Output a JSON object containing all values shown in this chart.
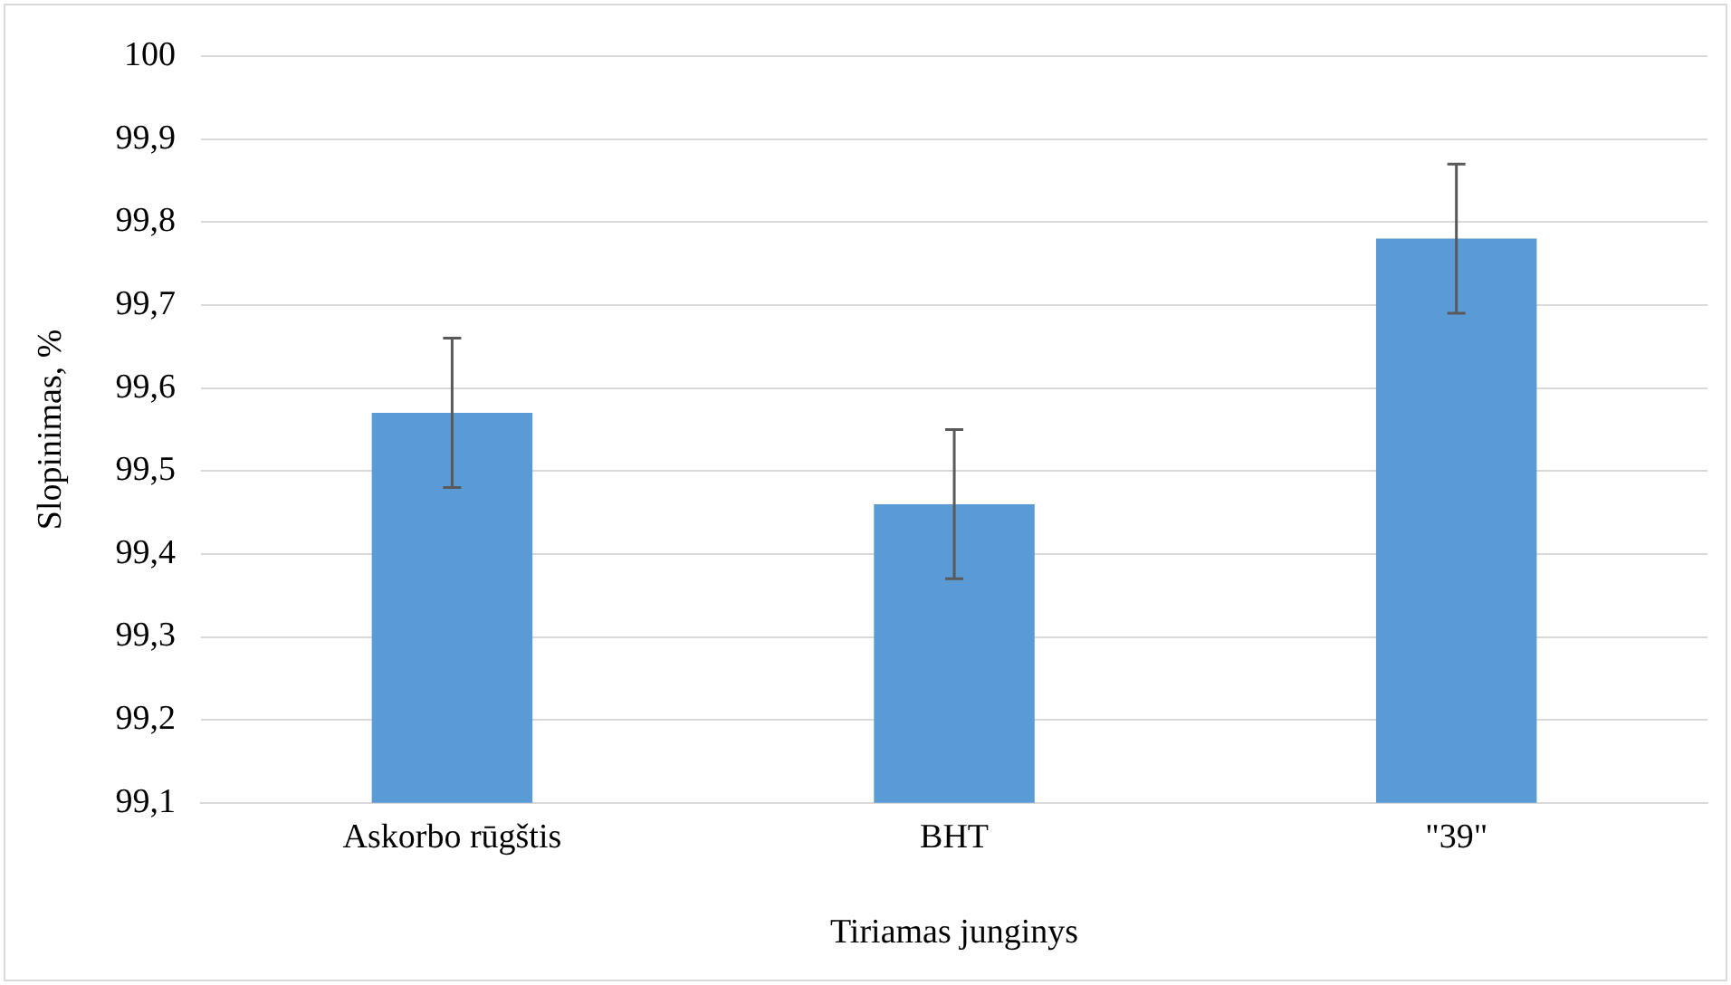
{
  "chart_data": {
    "type": "bar",
    "xlabel": "Tiriamas junginys",
    "ylabel": "Slopinimas, %",
    "categories": [
      "Askorbo rūgštis",
      "BHT",
      "\"39\""
    ],
    "values": [
      99.57,
      99.46,
      99.78
    ],
    "errors": [
      0.09,
      0.09,
      0.09
    ],
    "color": "#5b9bd5",
    "ylim": [
      99.1,
      100
    ],
    "yticks": [
      {
        "value": 99.1,
        "label": "99,1"
      },
      {
        "value": 99.2,
        "label": "99,2"
      },
      {
        "value": 99.3,
        "label": "99,3"
      },
      {
        "value": 99.4,
        "label": "99,4"
      },
      {
        "value": 99.5,
        "label": "99,5"
      },
      {
        "value": 99.6,
        "label": "99,6"
      },
      {
        "value": 99.7,
        "label": "99,7"
      },
      {
        "value": 99.8,
        "label": "99,8"
      },
      {
        "value": 99.9,
        "label": "99,9"
      },
      {
        "value": 100,
        "label": "100"
      }
    ],
    "grid": "y"
  }
}
